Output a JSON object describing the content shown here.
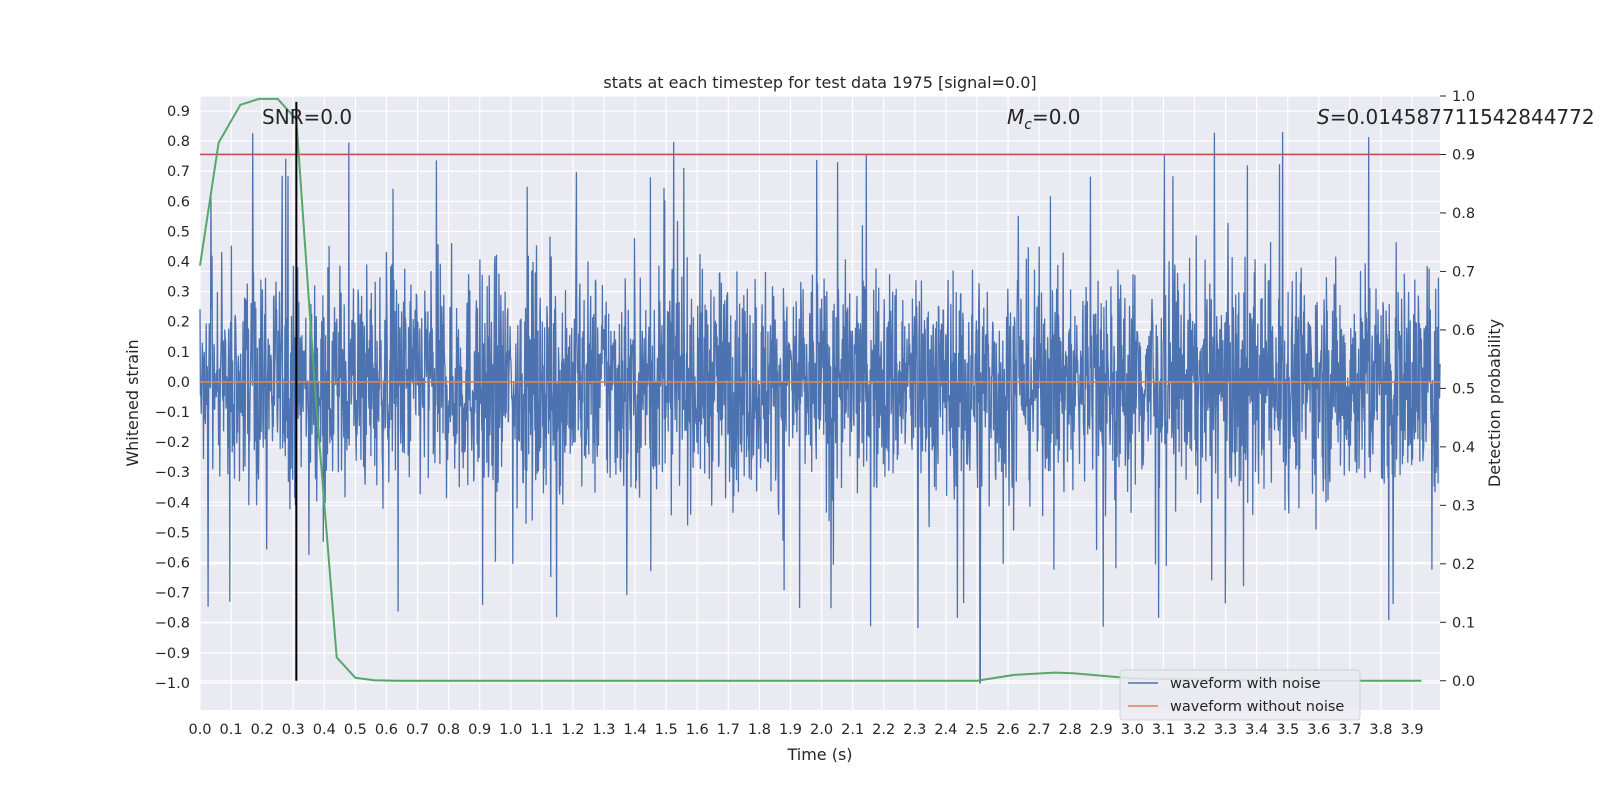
{
  "chart_data": {
    "type": "line",
    "title": "stats at each timestep for test data 1975 [signal=0.0]",
    "xlabel": "Time (s)",
    "ylabel": "Whitened strain",
    "y2label": "Detection probability",
    "xlim": [
      0.0,
      3.99
    ],
    "ylim": [
      -1.09,
      0.95
    ],
    "y2lim": [
      -0.05,
      1.0
    ],
    "x_ticks": [
      "0.0",
      "0.1",
      "0.2",
      "0.3",
      "0.4",
      "0.5",
      "0.6",
      "0.7",
      "0.8",
      "0.9",
      "1.0",
      "1.1",
      "1.2",
      "1.3",
      "1.4",
      "1.5",
      "1.6",
      "1.7",
      "1.8",
      "1.9",
      "2.0",
      "2.1",
      "2.2",
      "2.3",
      "2.4",
      "2.5",
      "2.6",
      "2.7",
      "2.8",
      "2.9",
      "3.0",
      "3.1",
      "3.2",
      "3.3",
      "3.4",
      "3.5",
      "3.6",
      "3.7",
      "3.8",
      "3.9"
    ],
    "y_ticks": [
      "0.9",
      "0.8",
      "0.7",
      "0.6",
      "0.5",
      "0.4",
      "0.3",
      "0.2",
      "0.1",
      "0.0",
      "−0.1",
      "−0.2",
      "−0.3",
      "−0.4",
      "−0.5",
      "−0.6",
      "−0.7",
      "−0.8",
      "−0.9",
      "−1.0"
    ],
    "y2_ticks": [
      "1.0",
      "0.9",
      "0.8",
      "0.7",
      "0.6",
      "0.5",
      "0.4",
      "0.3",
      "0.2",
      "0.1",
      "0.0"
    ],
    "annotations": {
      "snr": "SNR=0.0",
      "mc_sym": "M",
      "mc_sub": "c",
      "mc_val": "=0.0",
      "s_sym": "S",
      "s_val": "=0.014587711542844772"
    },
    "threshold": {
      "axis": "y2",
      "value": 0.9,
      "color": "#c44e52"
    },
    "marker_time": 0.31,
    "series": [
      {
        "name": "waveform with noise",
        "axis": "y",
        "color": "#4c72b0",
        "style": "dense-noise",
        "amplitude_typical": 0.3,
        "peak_max": 0.85,
        "trough_min": -1.0,
        "deep_trough_time": 2.51
      },
      {
        "name": "waveform without noise",
        "axis": "y",
        "color": "#dd8452",
        "x": [
          0.0,
          3.99
        ],
        "values": [
          0.0,
          0.0
        ]
      },
      {
        "name": "detection probability",
        "axis": "y2",
        "color": "#55a868",
        "legend": false,
        "x": [
          0.0,
          0.06,
          0.13,
          0.19,
          0.25,
          0.31,
          0.37,
          0.44,
          0.5,
          0.56,
          0.63,
          1.0,
          2.0,
          2.5,
          2.62,
          2.75,
          2.81,
          3.0,
          3.5,
          3.93
        ],
        "values": [
          0.71,
          0.92,
          0.985,
          0.995,
          0.995,
          0.96,
          0.5,
          0.04,
          0.005,
          0.001,
          0.0,
          0.0,
          0.0,
          0.0,
          0.01,
          0.014,
          0.013,
          0.004,
          0.0,
          0.0
        ]
      }
    ]
  }
}
